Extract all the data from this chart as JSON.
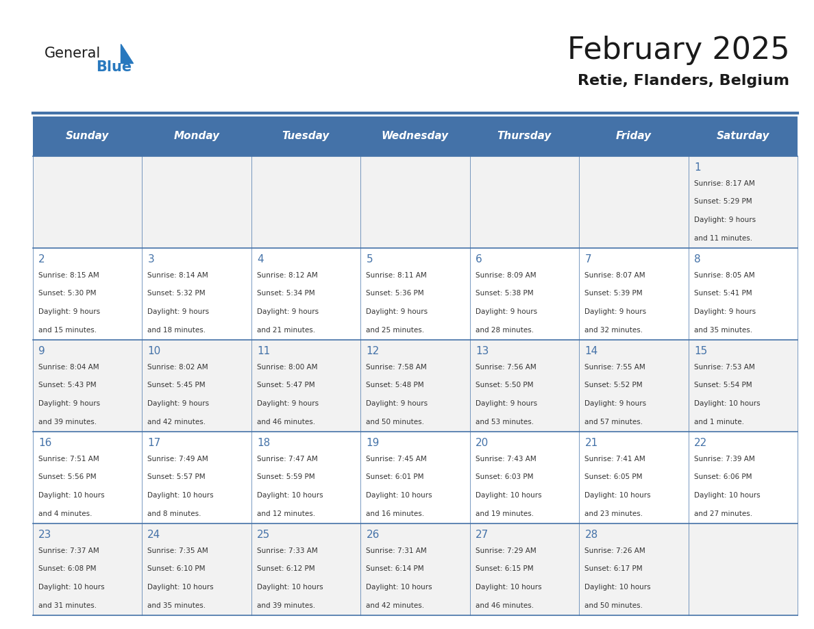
{
  "title": "February 2025",
  "subtitle": "Retie, Flanders, Belgium",
  "days_of_week": [
    "Sunday",
    "Monday",
    "Tuesday",
    "Wednesday",
    "Thursday",
    "Friday",
    "Saturday"
  ],
  "header_bg": "#4472a8",
  "header_text": "#ffffff",
  "cell_bg_odd": "#f2f2f2",
  "cell_bg_even": "#ffffff",
  "border_color": "#4472a8",
  "day_number_color": "#4472a8",
  "text_color": "#333333",
  "logo_general_color": "#1a1a1a",
  "logo_blue_color": "#2878be",
  "calendar_data": [
    [
      null,
      null,
      null,
      null,
      null,
      null,
      {
        "day": 1,
        "sunrise": "8:17 AM",
        "sunset": "5:29 PM",
        "daylight": "9 hours and 11 minutes"
      }
    ],
    [
      {
        "day": 2,
        "sunrise": "8:15 AM",
        "sunset": "5:30 PM",
        "daylight": "9 hours and 15 minutes"
      },
      {
        "day": 3,
        "sunrise": "8:14 AM",
        "sunset": "5:32 PM",
        "daylight": "9 hours and 18 minutes"
      },
      {
        "day": 4,
        "sunrise": "8:12 AM",
        "sunset": "5:34 PM",
        "daylight": "9 hours and 21 minutes"
      },
      {
        "day": 5,
        "sunrise": "8:11 AM",
        "sunset": "5:36 PM",
        "daylight": "9 hours and 25 minutes"
      },
      {
        "day": 6,
        "sunrise": "8:09 AM",
        "sunset": "5:38 PM",
        "daylight": "9 hours and 28 minutes"
      },
      {
        "day": 7,
        "sunrise": "8:07 AM",
        "sunset": "5:39 PM",
        "daylight": "9 hours and 32 minutes"
      },
      {
        "day": 8,
        "sunrise": "8:05 AM",
        "sunset": "5:41 PM",
        "daylight": "9 hours and 35 minutes"
      }
    ],
    [
      {
        "day": 9,
        "sunrise": "8:04 AM",
        "sunset": "5:43 PM",
        "daylight": "9 hours and 39 minutes"
      },
      {
        "day": 10,
        "sunrise": "8:02 AM",
        "sunset": "5:45 PM",
        "daylight": "9 hours and 42 minutes"
      },
      {
        "day": 11,
        "sunrise": "8:00 AM",
        "sunset": "5:47 PM",
        "daylight": "9 hours and 46 minutes"
      },
      {
        "day": 12,
        "sunrise": "7:58 AM",
        "sunset": "5:48 PM",
        "daylight": "9 hours and 50 minutes"
      },
      {
        "day": 13,
        "sunrise": "7:56 AM",
        "sunset": "5:50 PM",
        "daylight": "9 hours and 53 minutes"
      },
      {
        "day": 14,
        "sunrise": "7:55 AM",
        "sunset": "5:52 PM",
        "daylight": "9 hours and 57 minutes"
      },
      {
        "day": 15,
        "sunrise": "7:53 AM",
        "sunset": "5:54 PM",
        "daylight": "10 hours and 1 minute"
      }
    ],
    [
      {
        "day": 16,
        "sunrise": "7:51 AM",
        "sunset": "5:56 PM",
        "daylight": "10 hours and 4 minutes"
      },
      {
        "day": 17,
        "sunrise": "7:49 AM",
        "sunset": "5:57 PM",
        "daylight": "10 hours and 8 minutes"
      },
      {
        "day": 18,
        "sunrise": "7:47 AM",
        "sunset": "5:59 PM",
        "daylight": "10 hours and 12 minutes"
      },
      {
        "day": 19,
        "sunrise": "7:45 AM",
        "sunset": "6:01 PM",
        "daylight": "10 hours and 16 minutes"
      },
      {
        "day": 20,
        "sunrise": "7:43 AM",
        "sunset": "6:03 PM",
        "daylight": "10 hours and 19 minutes"
      },
      {
        "day": 21,
        "sunrise": "7:41 AM",
        "sunset": "6:05 PM",
        "daylight": "10 hours and 23 minutes"
      },
      {
        "day": 22,
        "sunrise": "7:39 AM",
        "sunset": "6:06 PM",
        "daylight": "10 hours and 27 minutes"
      }
    ],
    [
      {
        "day": 23,
        "sunrise": "7:37 AM",
        "sunset": "6:08 PM",
        "daylight": "10 hours and 31 minutes"
      },
      {
        "day": 24,
        "sunrise": "7:35 AM",
        "sunset": "6:10 PM",
        "daylight": "10 hours and 35 minutes"
      },
      {
        "day": 25,
        "sunrise": "7:33 AM",
        "sunset": "6:12 PM",
        "daylight": "10 hours and 39 minutes"
      },
      {
        "day": 26,
        "sunrise": "7:31 AM",
        "sunset": "6:14 PM",
        "daylight": "10 hours and 42 minutes"
      },
      {
        "day": 27,
        "sunrise": "7:29 AM",
        "sunset": "6:15 PM",
        "daylight": "10 hours and 46 minutes"
      },
      {
        "day": 28,
        "sunrise": "7:26 AM",
        "sunset": "6:17 PM",
        "daylight": "10 hours and 50 minutes"
      },
      null
    ]
  ]
}
